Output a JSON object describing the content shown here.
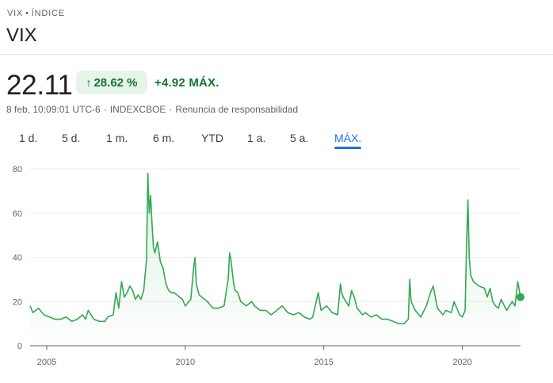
{
  "header": {
    "breadcrumb_symbol": "VIX",
    "breadcrumb_sep": "•",
    "breadcrumb_type": "ÍNDICE",
    "title": "VIX"
  },
  "quote": {
    "price": "22.11",
    "change_percent": "28.62 %",
    "change_arrow": "↑",
    "change_absolute": "+4.92 MÁX.",
    "timestamp": "8 feb, 10:09:01 UTC-6",
    "exchange": "INDEXCBOE",
    "disclaimer": "Renuncia de responsabilidad",
    "meta_sep": "·"
  },
  "range_tabs": [
    "1 d.",
    "5 d.",
    "1 m.",
    "6 m.",
    "YTD",
    "1 a.",
    "5 a.",
    "MÁX."
  ],
  "active_range": "MÁX.",
  "colors": {
    "accent": "#1a73e8",
    "positive": "#137333",
    "positive_bg": "#e6f4ea",
    "line": "#34a853"
  },
  "chart_data": {
    "type": "line",
    "xlabel": "",
    "ylabel": "",
    "x_ticks": [
      2005,
      2010,
      2015,
      2020
    ],
    "y_ticks": [
      0,
      20,
      40,
      60,
      80
    ],
    "xlim": [
      2004.4,
      2022.1
    ],
    "ylim": [
      0,
      80
    ],
    "grid": true,
    "area_fill": true,
    "series": [
      {
        "x": [
          2004.4,
          2004.5,
          2004.7,
          2004.9,
          2005.1,
          2005.3,
          2005.5,
          2005.7,
          2005.9,
          2006.1,
          2006.3,
          2006.4,
          2006.5,
          2006.7,
          2006.9,
          2007.1,
          2007.2,
          2007.4,
          2007.5,
          2007.6,
          2007.7,
          2007.8,
          2007.9,
          2008.0,
          2008.1,
          2008.2,
          2008.3,
          2008.4,
          2008.5,
          2008.6,
          2008.65,
          2008.7,
          2008.75,
          2008.8,
          2008.85,
          2008.9,
          2009.0,
          2009.1,
          2009.2,
          2009.3,
          2009.4,
          2009.5,
          2009.6,
          2009.8,
          2009.9,
          2010.0,
          2010.2,
          2010.3,
          2010.35,
          2010.4,
          2010.5,
          2010.6,
          2010.8,
          2011.0,
          2011.2,
          2011.4,
          2011.55,
          2011.6,
          2011.65,
          2011.7,
          2011.75,
          2011.8,
          2011.9,
          2012.0,
          2012.2,
          2012.4,
          2012.5,
          2012.7,
          2012.9,
          2013.1,
          2013.3,
          2013.5,
          2013.7,
          2013.9,
          2014.1,
          2014.3,
          2014.5,
          2014.6,
          2014.8,
          2014.9,
          2015.1,
          2015.3,
          2015.5,
          2015.6,
          2015.65,
          2015.7,
          2015.8,
          2015.9,
          2016.0,
          2016.1,
          2016.2,
          2016.4,
          2016.5,
          2016.7,
          2016.9,
          2017.1,
          2017.3,
          2017.5,
          2017.7,
          2017.9,
          2018.05,
          2018.1,
          2018.15,
          2018.3,
          2018.5,
          2018.7,
          2018.85,
          2018.95,
          2019.1,
          2019.3,
          2019.4,
          2019.6,
          2019.7,
          2019.9,
          2020.0,
          2020.1,
          2020.15,
          2020.2,
          2020.25,
          2020.3,
          2020.4,
          2020.5,
          2020.6,
          2020.8,
          2020.9,
          2021.0,
          2021.1,
          2021.2,
          2021.3,
          2021.4,
          2021.6,
          2021.8,
          2021.9,
          2022.0,
          2022.1
        ],
        "values": [
          18,
          15,
          17,
          14,
          13,
          12,
          12,
          13,
          11,
          12,
          14,
          12,
          16,
          12,
          11,
          11,
          13,
          14,
          24,
          17,
          29,
          22,
          24,
          27,
          25,
          21,
          23,
          21,
          25,
          39,
          78,
          60,
          68,
          55,
          45,
          42,
          47,
          38,
          35,
          28,
          25,
          24,
          24,
          22,
          21,
          18,
          21,
          35,
          40,
          28,
          23,
          22,
          20,
          17,
          17,
          18,
          30,
          42,
          39,
          33,
          28,
          25,
          24,
          20,
          18,
          20,
          18,
          16,
          16,
          14,
          16,
          18,
          15,
          14,
          15,
          13,
          12,
          13,
          24,
          16,
          18,
          15,
          14,
          28,
          24,
          22,
          20,
          18,
          25,
          22,
          17,
          14,
          15,
          13,
          14,
          12,
          12,
          11,
          10,
          10,
          12,
          30,
          20,
          16,
          13,
          18,
          24,
          27,
          17,
          14,
          16,
          15,
          20,
          14,
          13,
          16,
          45,
          66,
          40,
          32,
          29,
          28,
          27,
          26,
          22,
          26,
          20,
          18,
          17,
          21,
          16,
          20,
          18,
          29,
          22
        ]
      }
    ]
  }
}
